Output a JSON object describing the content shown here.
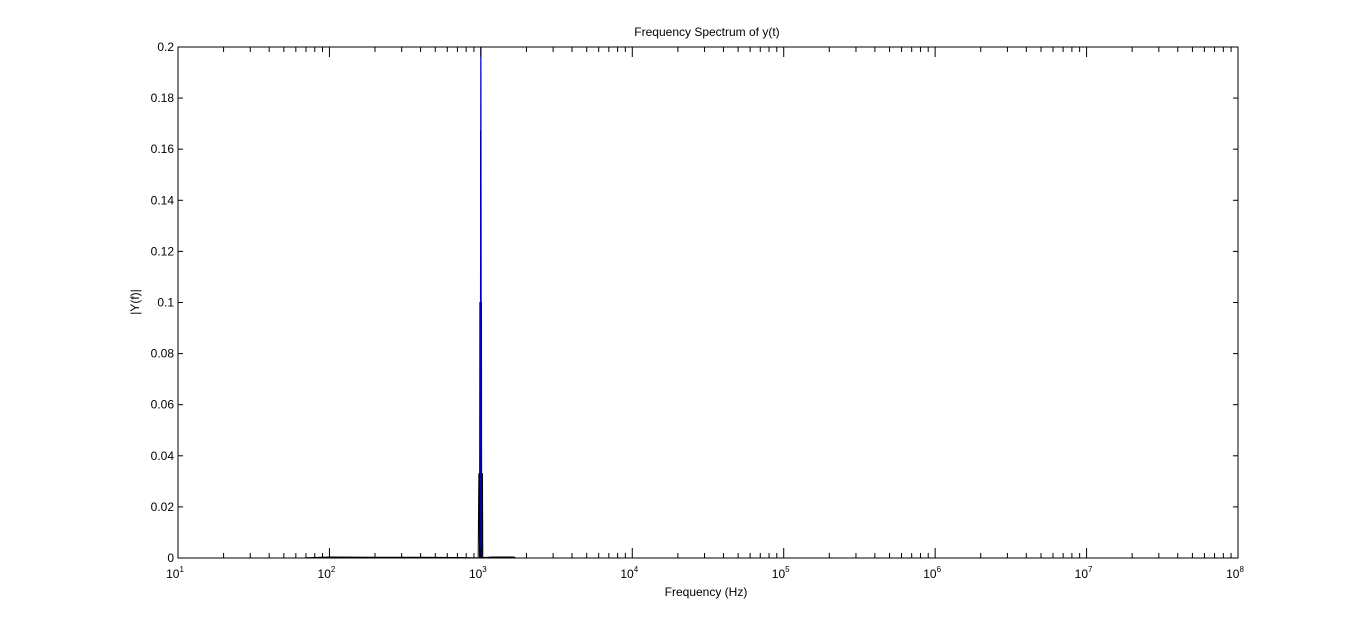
{
  "chart_data": {
    "type": "line",
    "title": "Frequency Spectrum of y(t)",
    "xlabel": "Frequency (Hz)",
    "ylabel": "|Y(f)|",
    "x_scale": "log",
    "xlim": [
      10,
      100000000
    ],
    "ylim": [
      0,
      0.2
    ],
    "x_tick_base": "10",
    "x_tick_exponents": [
      "1",
      "2",
      "3",
      "4",
      "5",
      "6",
      "7",
      "8"
    ],
    "y_ticks": [
      "0",
      "0.02",
      "0.04",
      "0.06",
      "0.08",
      "0.1",
      "0.12",
      "0.14",
      "0.16",
      "0.18",
      "0.2"
    ],
    "grid": false,
    "legend": "none",
    "box": true,
    "series": [
      {
        "color": "#000000",
        "points": [
          [
            70,
            0.0001
          ],
          [
            100,
            0.0004
          ],
          [
            200,
            0.0003
          ],
          [
            400,
            0.0003
          ],
          [
            700,
            0.0002
          ],
          [
            900,
            0.0001
          ],
          [
            960,
            0.0001
          ],
          [
            970,
            0.033
          ],
          [
            975,
            0.033
          ],
          [
            980,
            0.0
          ],
          [
            985,
            0.1
          ],
          [
            990,
            0.1
          ],
          [
            993,
            0.0
          ],
          [
            995,
            0.167
          ],
          [
            1000,
            0.167
          ],
          [
            1003,
            0.0
          ],
          [
            1005,
            0.1
          ],
          [
            1010,
            0.1
          ],
          [
            1013,
            0.0
          ],
          [
            1018,
            0.033
          ],
          [
            1025,
            0.033
          ],
          [
            1030,
            0.0002
          ],
          [
            1200,
            0.0004
          ],
          [
            1650,
            0.0004
          ],
          [
            1700,
            0.0
          ]
        ]
      },
      {
        "color": "#0000cc",
        "points": [
          [
            975,
            0.0
          ],
          [
            990,
            0.0
          ],
          [
            998,
            0.2
          ],
          [
            1002,
            0.2
          ],
          [
            1010,
            0.0
          ],
          [
            1100,
            0.0
          ],
          [
            100000000,
            0.0
          ]
        ]
      }
    ]
  }
}
